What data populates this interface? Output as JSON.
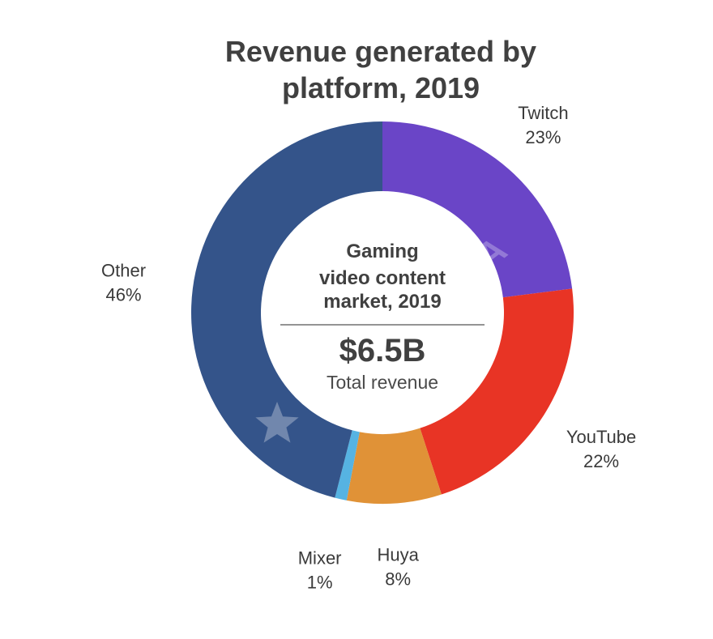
{
  "chart_data": {
    "type": "pie",
    "variant": "donut",
    "title_lines": [
      "Revenue generated by",
      "platform, 2019"
    ],
    "categories": [
      "Twitch",
      "YouTube",
      "Huya",
      "Mixer",
      "Other"
    ],
    "values": [
      23,
      22,
      8,
      1,
      46
    ],
    "value_labels": [
      "23%",
      "22%",
      "8%",
      "1%",
      "46%"
    ],
    "colors": [
      "#6a45c7",
      "#e83425",
      "#e09237",
      "#56b3e2",
      "#34548a"
    ],
    "center": {
      "heading_lines": [
        "Gaming",
        "video content",
        "market, 2019"
      ],
      "value": "$6.5B",
      "subtitle": "Total revenue"
    },
    "legend": "none",
    "watermark": "SUPERDATA"
  }
}
